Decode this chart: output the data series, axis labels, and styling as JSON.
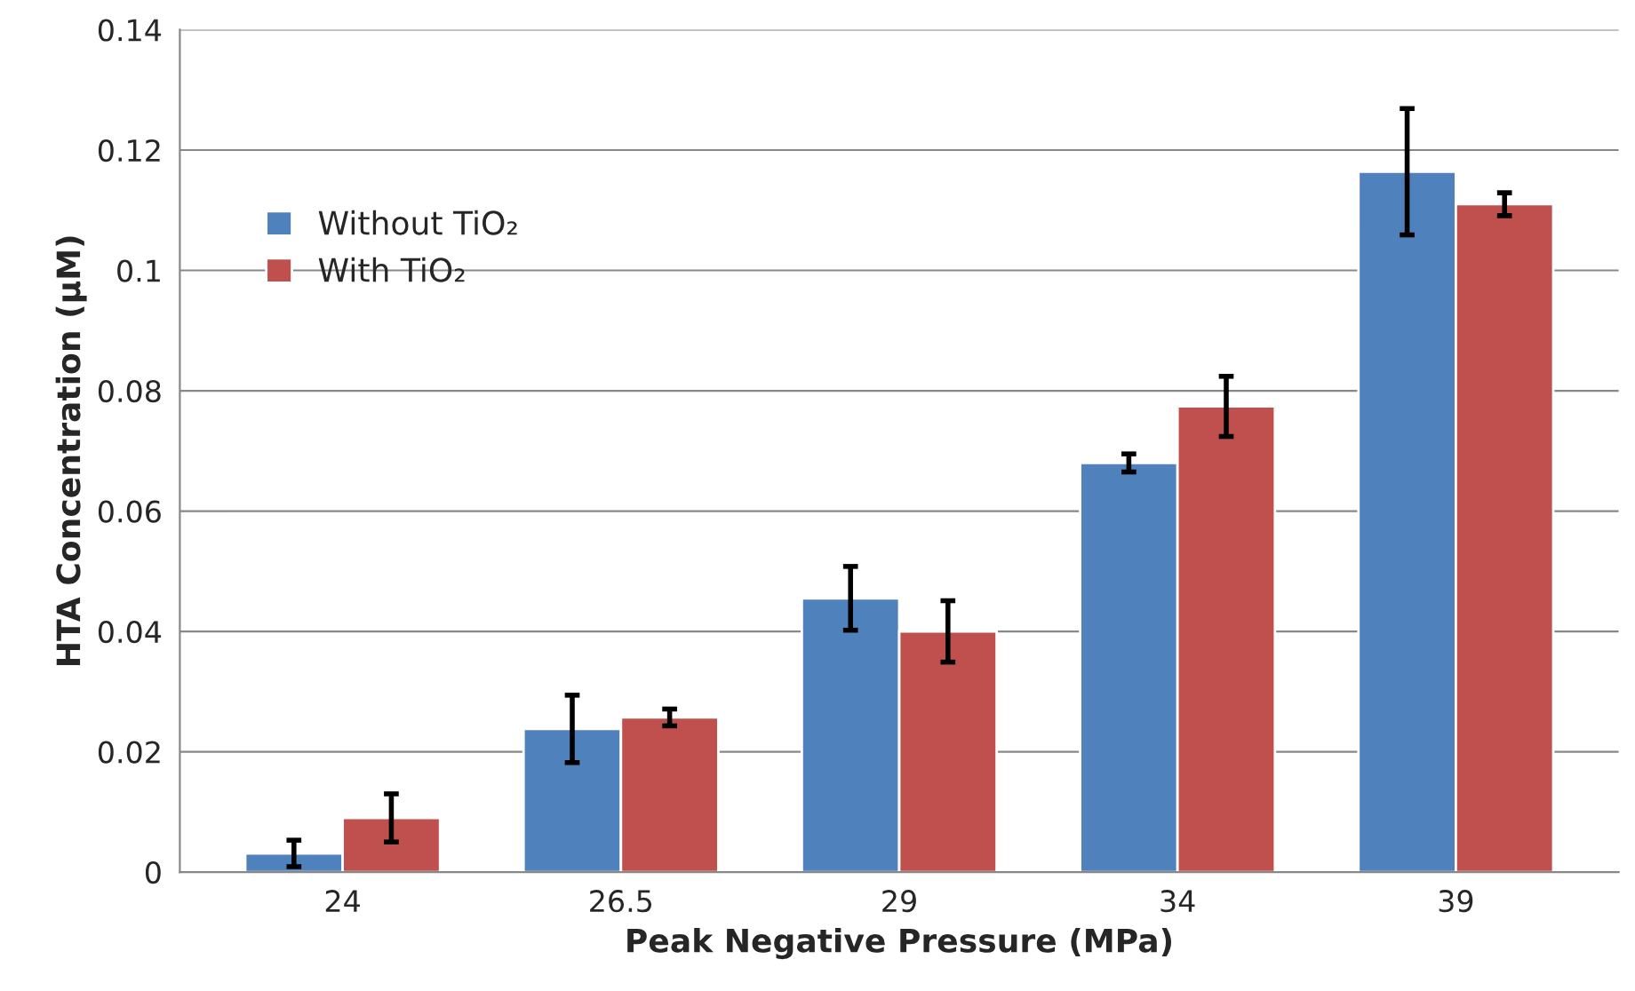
{
  "chart_data": {
    "type": "bar",
    "xlabel": "Peak Negative Pressure (MPa)",
    "ylabel": "HTA Concentration (µM)",
    "categories": [
      "24",
      "26.5",
      "29",
      "34",
      "39"
    ],
    "series": [
      {
        "name": "Without TiO₂",
        "color": "#4f81bd",
        "values": [
          0.0031,
          0.0238,
          0.0455,
          0.068,
          0.1164
        ],
        "errors": [
          0.0022,
          0.0056,
          0.0053,
          0.0015,
          0.0105
        ]
      },
      {
        "name": "With TiO₂",
        "color": "#c0504d",
        "values": [
          0.009,
          0.0257,
          0.04,
          0.0774,
          0.111
        ],
        "errors": [
          0.004,
          0.0014,
          0.0051,
          0.005,
          0.0019
        ]
      }
    ],
    "ylim": [
      0,
      0.14
    ],
    "yticks": [
      0,
      0.02,
      0.04,
      0.06,
      0.08,
      0.1,
      0.12,
      0.14
    ],
    "grid": "y",
    "legend": "top left"
  }
}
